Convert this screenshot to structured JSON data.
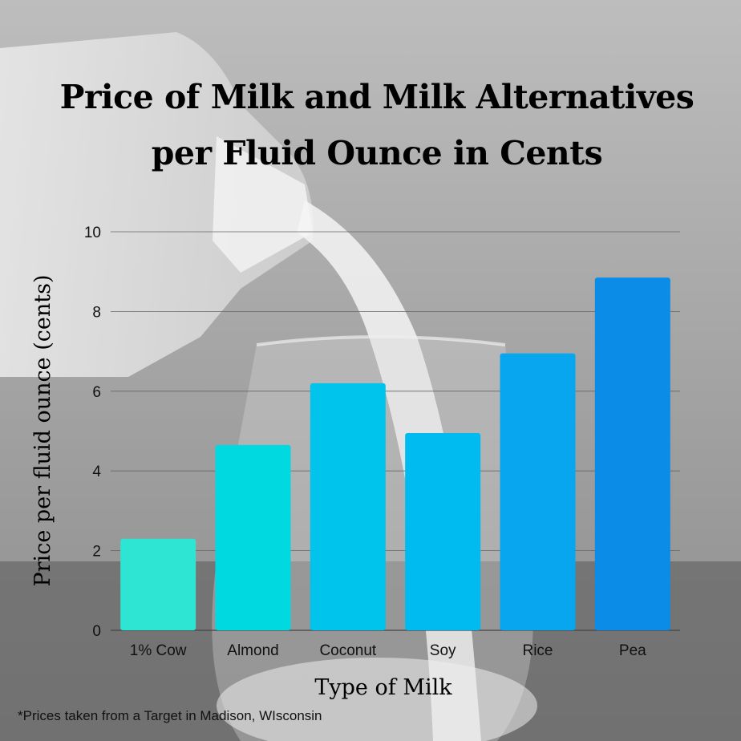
{
  "chart_data": {
    "type": "bar",
    "title_lines": [
      "Price of Milk and Milk Alternatives",
      "per Fluid Ounce in Cents"
    ],
    "xlabel": "Type of Milk",
    "ylabel": "Price per fluid ounce (cents)",
    "categories": [
      "1% Cow",
      "Almond",
      "Coconut",
      "Soy",
      "Rice",
      "Pea"
    ],
    "values": [
      2.3,
      4.65,
      6.2,
      4.95,
      6.95,
      8.85
    ],
    "colors": [
      "#2ee5d3",
      "#00d9e0",
      "#00c4ec",
      "#00bbf0",
      "#08a6ee",
      "#0b8de7"
    ],
    "ylim": [
      0,
      10
    ],
    "yticks": [
      0,
      2,
      4,
      6,
      8,
      10
    ],
    "grid": true,
    "legend": "none",
    "footnote": "*Prices taken from a Target in Madison, WIsconsin"
  }
}
